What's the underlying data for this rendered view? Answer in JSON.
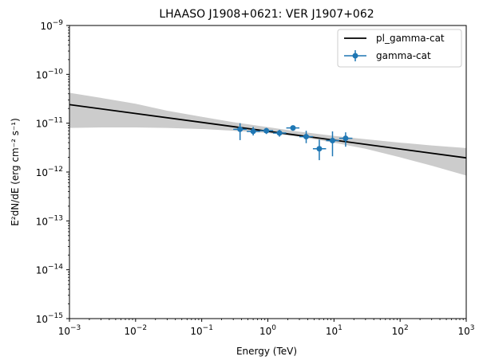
{
  "chart_data": {
    "type": "scatter",
    "title": "LHAASO J1908+0621: VER J1907+062",
    "xlabel": "Energy (TeV)",
    "ylabel": "E²dN/dE (erg cm⁻² s⁻¹)",
    "xscale": "log",
    "yscale": "log",
    "xlim": [
      0.001,
      1000
    ],
    "ylim": [
      1e-15,
      1e-09
    ],
    "x_ticks": [
      {
        "value": 0.001,
        "base": "10",
        "exp": "−3"
      },
      {
        "value": 0.01,
        "base": "10",
        "exp": "−2"
      },
      {
        "value": 0.1,
        "base": "10",
        "exp": "−1"
      },
      {
        "value": 1,
        "base": "10",
        "exp": "0"
      },
      {
        "value": 10,
        "base": "10",
        "exp": "1"
      },
      {
        "value": 100,
        "base": "10",
        "exp": "2"
      },
      {
        "value": 1000,
        "base": "10",
        "exp": "3"
      }
    ],
    "y_ticks": [
      {
        "value": 1e-15,
        "base": "10",
        "exp": "−15"
      },
      {
        "value": 1e-14,
        "base": "10",
        "exp": "−14"
      },
      {
        "value": 1e-13,
        "base": "10",
        "exp": "−13"
      },
      {
        "value": 1e-12,
        "base": "10",
        "exp": "−12"
      },
      {
        "value": 1e-11,
        "base": "10",
        "exp": "−11"
      },
      {
        "value": 1e-10,
        "base": "10",
        "exp": "−10"
      },
      {
        "value": 1e-09,
        "base": "10",
        "exp": "−9"
      }
    ],
    "legend_position": "top-right",
    "series": [
      {
        "name": "pl_gamma-cat",
        "kind": "line",
        "color": "#000000",
        "x": [
          0.001,
          1000
        ],
        "y": [
          2.4e-11,
          1.95e-12
        ]
      },
      {
        "name": "",
        "kind": "band",
        "color": "#cccccc",
        "x": [
          0.001,
          0.003,
          0.01,
          0.03,
          0.1,
          0.3,
          1,
          3,
          10,
          30,
          100,
          300,
          1000
        ],
        "y_low": [
          8e-12,
          8.2e-12,
          8.2e-12,
          8e-12,
          7.6e-12,
          7e-12,
          6.3e-12,
          5.3e-12,
          4e-12,
          3e-12,
          2e-12,
          1.35e-12,
          8.5e-13
        ],
        "y_high": [
          4.2e-11,
          3.3e-11,
          2.5e-11,
          1.8e-11,
          1.35e-11,
          1.05e-11,
          8.3e-12,
          6.7e-12,
          5.5e-12,
          4.7e-12,
          4e-12,
          3.5e-12,
          3.1e-12
        ]
      },
      {
        "name": "gamma-cat",
        "kind": "errorbar",
        "color": "#1f77b4",
        "points": [
          {
            "x": 0.38,
            "y": 7.5e-12,
            "x_lo": 0.3,
            "x_hi": 0.48,
            "y_lo": 4.5e-12,
            "y_hi": 1e-11
          },
          {
            "x": 0.6,
            "y": 6.8e-12,
            "x_lo": 0.48,
            "x_hi": 0.76,
            "y_lo": 5.6e-12,
            "y_hi": 8.4e-12
          },
          {
            "x": 0.95,
            "y": 7e-12,
            "x_lo": 0.76,
            "x_hi": 1.2,
            "y_lo": 6e-12,
            "y_hi": 8e-12
          },
          {
            "x": 1.5,
            "y": 6.3e-12,
            "x_lo": 1.2,
            "x_hi": 1.9,
            "y_lo": 5.3e-12,
            "y_hi": 7.3e-12
          },
          {
            "x": 2.4,
            "y": 8e-12,
            "x_lo": 1.9,
            "x_hi": 3.0,
            "y_lo": 7e-12,
            "y_hi": 9e-12
          },
          {
            "x": 3.8,
            "y": 5.3e-12,
            "x_lo": 3.0,
            "x_hi": 4.8,
            "y_lo": 3.9e-12,
            "y_hi": 7e-12
          },
          {
            "x": 6.0,
            "y": 3e-12,
            "x_lo": 4.8,
            "x_hi": 7.6,
            "y_lo": 1.75e-12,
            "y_hi": 4.6e-12
          },
          {
            "x": 9.5,
            "y": 4.4e-12,
            "x_lo": 7.6,
            "x_hi": 12.0,
            "y_lo": 2.1e-12,
            "y_hi": 6.8e-12
          },
          {
            "x": 15.0,
            "y": 4.9e-12,
            "x_lo": 12.0,
            "x_hi": 19.0,
            "y_lo": 3.3e-12,
            "y_hi": 6.5e-12
          }
        ]
      }
    ]
  }
}
